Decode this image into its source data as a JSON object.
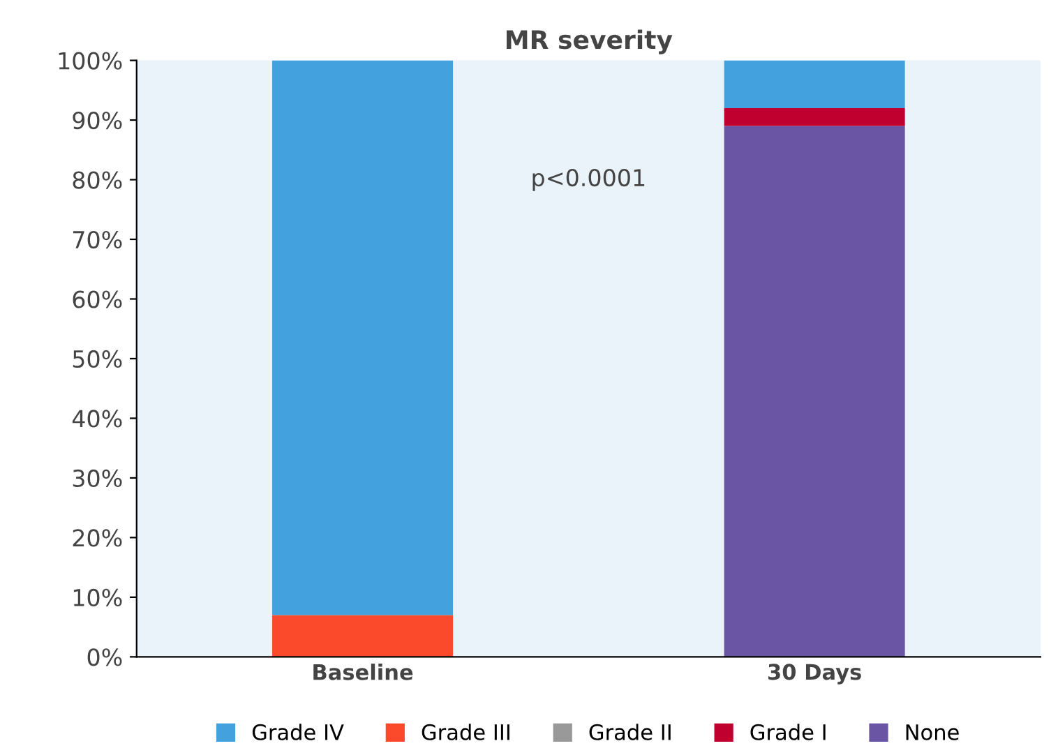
{
  "chart_data": {
    "type": "bar",
    "title": "MR severity",
    "categories": [
      "Baseline",
      "30 Days"
    ],
    "stacked": true,
    "series": [
      {
        "name": "None",
        "color": "#6a55a5",
        "values": [
          0,
          89
        ]
      },
      {
        "name": "Grade I",
        "color": "#c0002f",
        "values": [
          0,
          3
        ]
      },
      {
        "name": "Grade II",
        "color": "#999999",
        "values": [
          0,
          0
        ]
      },
      {
        "name": "Grade III",
        "color": "#fb4a2b",
        "values": [
          7,
          0
        ]
      },
      {
        "name": "Grade IV",
        "color": "#43a2de",
        "values": [
          93,
          8
        ]
      }
    ],
    "ylim": [
      0,
      100
    ],
    "yticks": [
      {
        "value": 0,
        "label": "0%"
      },
      {
        "value": 10,
        "label": "10%"
      },
      {
        "value": 20,
        "label": "20%"
      },
      {
        "value": 30,
        "label": "30%"
      },
      {
        "value": 40,
        "label": "40%"
      },
      {
        "value": 50,
        "label": "50%"
      },
      {
        "value": 60,
        "label": "60%"
      },
      {
        "value": 70,
        "label": "70%"
      },
      {
        "value": 80,
        "label": "80%"
      },
      {
        "value": 90,
        "label": "90%"
      },
      {
        "value": 100,
        "label": "100%"
      }
    ],
    "annotations": [
      "p<0.0001"
    ],
    "grid": false,
    "legend": "bottom"
  }
}
